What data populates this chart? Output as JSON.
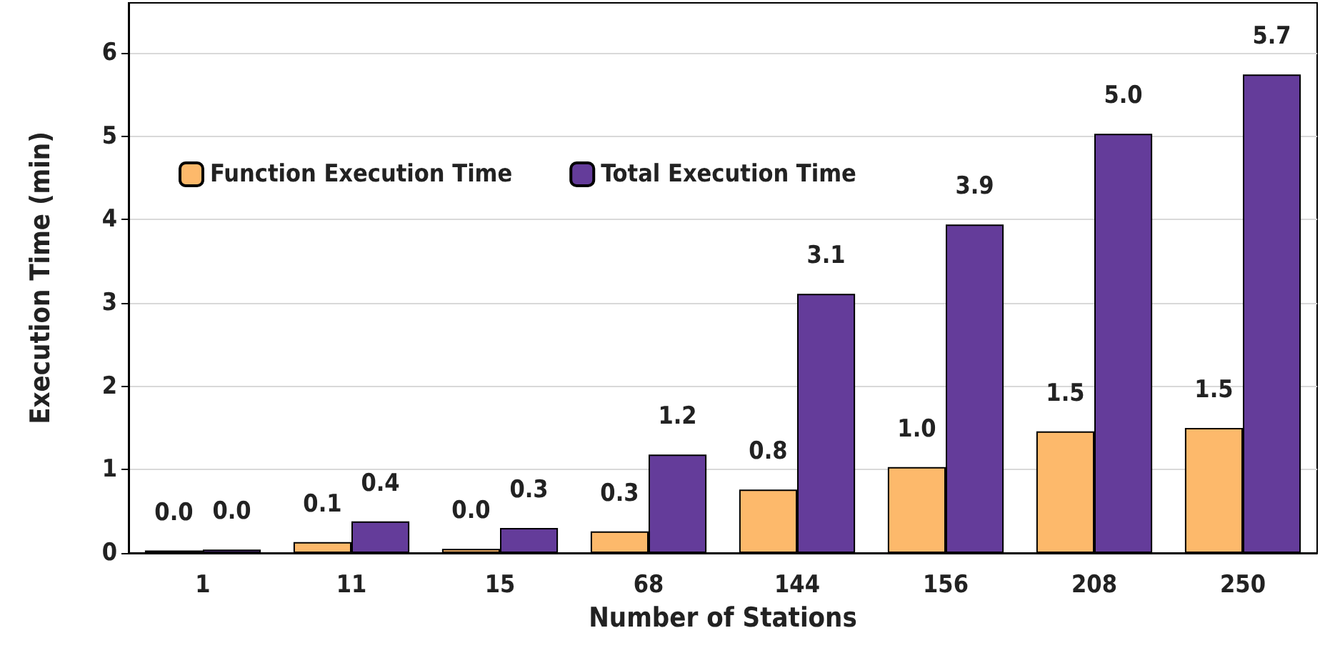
{
  "chart_data": {
    "type": "bar",
    "xlabel": "Number of Stations",
    "ylabel": "Execution Time (min)",
    "categories": [
      "1",
      "11",
      "15",
      "68",
      "144",
      "156",
      "208",
      "250"
    ],
    "series": [
      {
        "name": "Function Execution Time",
        "color": "#fdb96b",
        "values": [
          0.03,
          0.13,
          0.05,
          0.26,
          0.76,
          1.03,
          1.46,
          1.5
        ],
        "value_labels": [
          "0.0",
          "0.1",
          "0.0",
          "0.3",
          "0.8",
          "1.0",
          "1.5",
          "1.5"
        ]
      },
      {
        "name": "Total Execution Time",
        "color": "#643c9a",
        "values": [
          0.04,
          0.38,
          0.3,
          1.18,
          3.11,
          3.94,
          5.03,
          5.74
        ],
        "value_labels": [
          "0.0",
          "0.4",
          "0.3",
          "1.2",
          "3.1",
          "3.9",
          "5.0",
          "5.7"
        ]
      }
    ],
    "ylim": [
      0,
      6.6
    ],
    "yticks": [
      0,
      1,
      2,
      3,
      4,
      5,
      6
    ],
    "grid": "y",
    "legend": "top left"
  }
}
